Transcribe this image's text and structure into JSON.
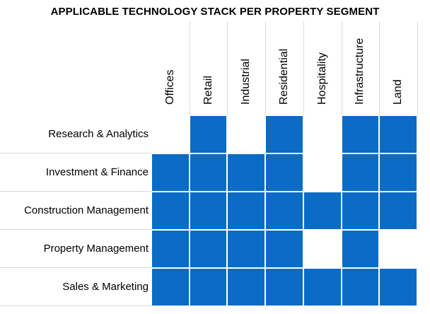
{
  "title": "APPLICABLE TECHNOLOGY STACK PER PROPERTY SEGMENT",
  "colors": {
    "filled": "#0a6cc4",
    "grid": "#d9d9d9"
  },
  "columns": [
    "Offices",
    "Retail",
    "Industrial",
    "Residential",
    "Hospitality",
    "Infrastructure",
    "Land"
  ],
  "rows": [
    {
      "label": "Research & Analytics",
      "cells": [
        0,
        1,
        0,
        1,
        0,
        1,
        1
      ]
    },
    {
      "label": "Investment & Finance",
      "cells": [
        1,
        1,
        1,
        1,
        0,
        1,
        1
      ]
    },
    {
      "label": "Construction Management",
      "cells": [
        1,
        1,
        1,
        1,
        1,
        1,
        1
      ]
    },
    {
      "label": "Property Management",
      "cells": [
        1,
        1,
        1,
        1,
        0,
        1,
        0
      ]
    },
    {
      "label": "Sales & Marketing",
      "cells": [
        1,
        1,
        1,
        1,
        1,
        1,
        1
      ]
    }
  ]
}
